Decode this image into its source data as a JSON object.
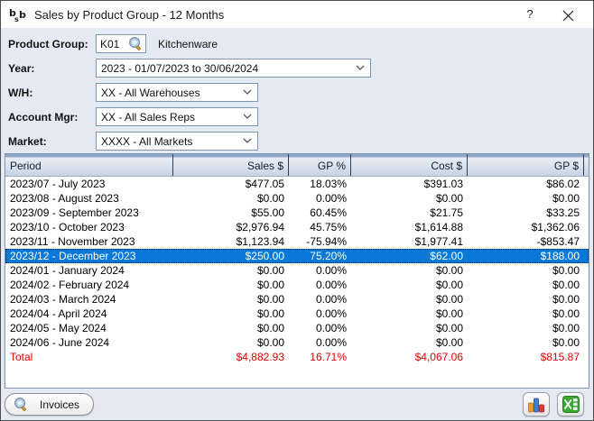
{
  "window": {
    "title": "Sales by Product Group - 12 Months",
    "help_glyph": "?"
  },
  "form": {
    "product_group": {
      "label": "Product Group:",
      "code": "K01",
      "name": "Kitchenware"
    },
    "year": {
      "label": "Year:",
      "value": "2023 - 01/07/2023 to 30/06/2024"
    },
    "warehouse": {
      "label": "W/H:",
      "value": "XX - All Warehouses"
    },
    "account_mgr": {
      "label": "Account Mgr:",
      "value": "XX - All Sales Reps"
    },
    "market": {
      "label": "Market:",
      "value": "XXXX - All Markets"
    }
  },
  "table": {
    "columns": [
      "Period",
      "Sales $",
      "GP %",
      "Cost $",
      "GP $"
    ],
    "selected_index": 5,
    "rows": [
      [
        "2023/07 - July 2023",
        "$477.05",
        "18.03%",
        "$391.03",
        "$86.02"
      ],
      [
        "2023/08 - August 2023",
        "$0.00",
        "0.00%",
        "$0.00",
        "$0.00"
      ],
      [
        "2023/09 - September 2023",
        "$55.00",
        "60.45%",
        "$21.75",
        "$33.25"
      ],
      [
        "2023/10 - October 2023",
        "$2,976.94",
        "45.75%",
        "$1,614.88",
        "$1,362.06"
      ],
      [
        "2023/11 - November 2023",
        "$1,123.94",
        "-75.94%",
        "$1,977.41",
        "-$853.47"
      ],
      [
        "2023/12 - December 2023",
        "$250.00",
        "75.20%",
        "$62.00",
        "$188.00"
      ],
      [
        "2024/01 - January 2024",
        "$0.00",
        "0.00%",
        "$0.00",
        "$0.00"
      ],
      [
        "2024/02 - February 2024",
        "$0.00",
        "0.00%",
        "$0.00",
        "$0.00"
      ],
      [
        "2024/03 - March 2024",
        "$0.00",
        "0.00%",
        "$0.00",
        "$0.00"
      ],
      [
        "2024/04 - April 2024",
        "$0.00",
        "0.00%",
        "$0.00",
        "$0.00"
      ],
      [
        "2024/05 - May 2024",
        "$0.00",
        "0.00%",
        "$0.00",
        "$0.00"
      ],
      [
        "2024/06 - June 2024",
        "$0.00",
        "0.00%",
        "$0.00",
        "$0.00"
      ]
    ],
    "total": [
      "Total",
      "$4,882.93",
      "16.71%",
      "$4,067.06",
      "$815.87"
    ]
  },
  "footer": {
    "invoices_label": "Invoices"
  },
  "icons": {
    "app_logo": "bsb-logo",
    "close": "close-x",
    "lookup": "magnifier",
    "combo": "chevron-down",
    "chart_button": "bar-chart",
    "excel_button": "excel-export"
  },
  "colors": {
    "dialog_bg": "#e4eaf3",
    "selected_row_bg": "#0a78d7",
    "total_text": "#e80000",
    "input_border": "#8095ae"
  }
}
